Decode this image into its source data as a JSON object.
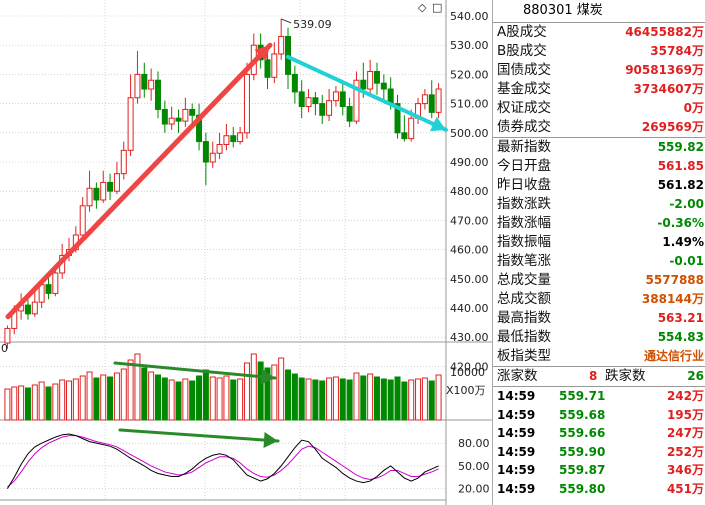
{
  "chart": {
    "peak_label": "539.09",
    "price_axis": [
      "540.00",
      "530.00",
      "520.00",
      "510.00",
      "500.00",
      "490.00",
      "480.00",
      "470.00",
      "460.00",
      "450.00",
      "440.00",
      "430.00",
      "420.00"
    ],
    "volume_axis_label": "10000",
    "volume_unit": "X100万",
    "kdj_axis": [
      "80.00",
      "50.00",
      "20.00"
    ],
    "top_left_label": "0",
    "colors": {
      "up": "#e02020",
      "down": "#008800",
      "red_arrow": "#f04545",
      "cyan_arrow": "#22d0d8",
      "green_arrow": "#2a8a2a",
      "k_line": "#000000",
      "d_line": "#d000d0"
    }
  },
  "chart_data": {
    "type": "candlestick",
    "candles": [
      [
        428,
        433,
        426,
        434
      ],
      [
        433,
        439,
        431,
        441
      ],
      [
        439,
        441,
        436,
        445
      ],
      [
        441,
        438,
        436,
        443
      ],
      [
        438,
        442,
        437,
        447
      ],
      [
        442,
        448,
        440,
        450
      ],
      [
        448,
        445,
        443,
        452
      ],
      [
        445,
        452,
        444,
        454
      ],
      [
        452,
        458,
        450,
        462
      ],
      [
        458,
        460,
        456,
        464
      ],
      [
        460,
        465,
        459,
        468
      ],
      [
        465,
        475,
        463,
        478
      ],
      [
        475,
        481,
        473,
        487
      ],
      [
        481,
        477,
        474,
        483
      ],
      [
        477,
        483,
        476,
        487
      ],
      [
        483,
        480,
        477,
        486
      ],
      [
        480,
        486,
        479,
        490
      ],
      [
        486,
        494,
        484,
        497
      ],
      [
        494,
        512,
        492,
        520
      ],
      [
        512,
        520,
        510,
        528
      ],
      [
        520,
        515,
        512,
        524
      ],
      [
        515,
        518,
        511,
        522
      ],
      [
        518,
        508,
        505,
        521
      ],
      [
        508,
        503,
        500,
        511
      ],
      [
        503,
        505,
        501,
        509
      ],
      [
        505,
        504,
        500,
        508
      ],
      [
        504,
        508,
        502,
        512
      ],
      [
        508,
        506,
        503,
        510
      ],
      [
        506,
        497,
        494,
        510
      ],
      [
        497,
        490,
        482,
        500
      ],
      [
        490,
        493,
        488,
        497
      ],
      [
        493,
        496,
        491,
        500
      ],
      [
        496,
        499,
        494,
        503
      ],
      [
        499,
        497,
        495,
        502
      ],
      [
        497,
        500,
        496,
        502
      ],
      [
        500,
        520,
        498,
        524
      ],
      [
        520,
        530,
        518,
        534
      ],
      [
        530,
        525,
        522,
        534
      ],
      [
        525,
        519,
        515,
        530
      ],
      [
        519,
        527,
        517,
        531
      ],
      [
        527,
        533,
        525,
        539
      ],
      [
        533,
        520,
        515,
        536
      ],
      [
        520,
        514,
        510,
        523
      ],
      [
        514,
        509,
        505,
        518
      ],
      [
        509,
        512,
        507,
        515
      ],
      [
        512,
        510,
        506,
        514
      ],
      [
        510,
        506,
        503,
        513
      ],
      [
        506,
        511,
        504,
        515
      ],
      [
        511,
        514,
        509,
        516
      ],
      [
        514,
        509,
        506,
        517
      ],
      [
        509,
        504,
        502,
        512
      ],
      [
        504,
        518,
        503,
        521
      ],
      [
        518,
        515,
        512,
        524
      ],
      [
        515,
        521,
        513,
        525
      ],
      [
        521,
        517,
        513,
        524
      ],
      [
        517,
        515,
        511,
        520
      ],
      [
        515,
        510,
        508,
        519
      ],
      [
        510,
        500,
        498,
        513
      ],
      [
        500,
        498,
        497,
        506
      ],
      [
        498,
        505,
        497,
        508
      ],
      [
        505,
        510,
        503,
        512
      ],
      [
        510,
        513,
        508,
        515
      ],
      [
        513,
        507,
        505,
        518
      ],
      [
        507,
        515,
        505,
        517
      ]
    ],
    "volume": [
      31,
      33,
      34,
      32,
      35,
      38,
      33,
      36,
      40,
      39,
      41,
      44,
      48,
      42,
      45,
      43,
      47,
      51,
      60,
      66,
      52,
      48,
      45,
      42,
      40,
      38,
      41,
      39,
      44,
      50,
      43,
      42,
      44,
      40,
      41,
      57,
      66,
      58,
      52,
      55,
      62,
      50,
      46,
      42,
      41,
      40,
      39,
      42,
      43,
      41,
      40,
      47,
      44,
      46,
      43,
      41,
      40,
      43,
      38,
      40,
      41,
      42,
      39,
      45
    ],
    "k": [
      20,
      35,
      52,
      66,
      75,
      80,
      84,
      88,
      91,
      92,
      90,
      86,
      82,
      80,
      78,
      76,
      72,
      66,
      60,
      55,
      50,
      44,
      40,
      38,
      36,
      36,
      40,
      46,
      54,
      60,
      64,
      66,
      64,
      58,
      48,
      38,
      34,
      30,
      33,
      40,
      50,
      62,
      74,
      84,
      82,
      72,
      60,
      54,
      48,
      40,
      34,
      30,
      28,
      30,
      36,
      44,
      50,
      42,
      34,
      30,
      34,
      42,
      46,
      50
    ],
    "d": [
      22,
      30,
      42,
      55,
      66,
      74,
      80,
      84,
      88,
      90,
      90,
      88,
      85,
      82,
      80,
      78,
      75,
      70,
      65,
      60,
      55,
      50,
      46,
      42,
      40,
      38,
      39,
      42,
      48,
      54,
      58,
      62,
      62,
      60,
      54,
      46,
      40,
      36,
      35,
      38,
      44,
      52,
      62,
      72,
      76,
      74,
      68,
      62,
      56,
      50,
      44,
      38,
      34,
      32,
      34,
      38,
      44,
      44,
      40,
      36,
      36,
      39,
      42,
      46
    ]
  },
  "panel": {
    "title": "880301  煤炭",
    "rows_a": [
      {
        "label": "A股成交",
        "value": "46455882万"
      },
      {
        "label": "B股成交",
        "value": "35784万"
      },
      {
        "label": "国债成交",
        "value": "90581369万"
      },
      {
        "label": "基金成交",
        "value": "3734607万"
      },
      {
        "label": "权证成交",
        "value": "0万"
      },
      {
        "label": "债券成交",
        "value": "269569万"
      }
    ],
    "rows_b": [
      {
        "label": "最新指数",
        "value": "559.82",
        "color": "green"
      },
      {
        "label": "今日开盘",
        "value": "561.85",
        "color": "red"
      },
      {
        "label": "昨日收盘",
        "value": "561.82",
        "color": "black"
      },
      {
        "label": "指数涨跌",
        "value": "-2.00",
        "color": "green"
      },
      {
        "label": "指数涨幅",
        "value": "-0.36%",
        "color": "green"
      },
      {
        "label": "指数振幅",
        "value": "1.49%",
        "color": "black"
      },
      {
        "label": "指数笔涨",
        "value": "-0.01",
        "color": "green"
      },
      {
        "label": "总成交量",
        "value": "5577888",
        "color": "orange"
      },
      {
        "label": "总成交额",
        "value": "388144万",
        "color": "orange"
      },
      {
        "label": "最高指数",
        "value": "563.21",
        "color": "red"
      },
      {
        "label": "最低指数",
        "value": "554.83",
        "color": "green"
      },
      {
        "label": "板指类型",
        "value": "通达信行业",
        "color": "orange"
      }
    ],
    "breadth": {
      "up_label": "涨家数",
      "up_value": "8",
      "down_label": "跌家数",
      "down_value": "26"
    },
    "ticks": [
      {
        "time": "14:59",
        "price": "559.71",
        "vol": "242万"
      },
      {
        "time": "14:59",
        "price": "559.68",
        "vol": "195万"
      },
      {
        "time": "14:59",
        "price": "559.66",
        "vol": "247万"
      },
      {
        "time": "14:59",
        "price": "559.90",
        "vol": "252万"
      },
      {
        "time": "14:59",
        "price": "559.87",
        "vol": "346万"
      },
      {
        "time": "14:59",
        "price": "559.80",
        "vol": "451万"
      }
    ]
  }
}
